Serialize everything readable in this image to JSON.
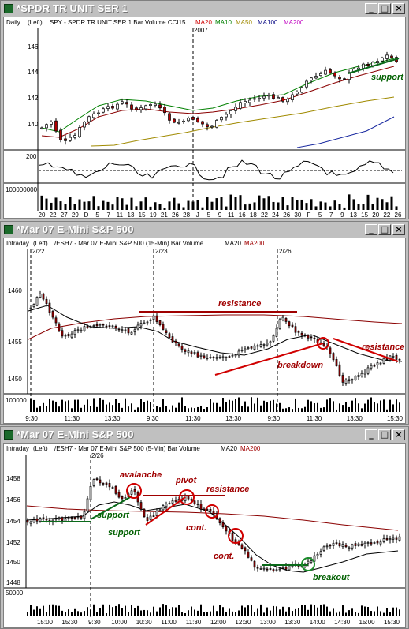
{
  "windows": [
    {
      "title": "*SPDR TR UNIT SER 1",
      "period": "Daily",
      "axis_side": "(Left)",
      "symbol_desc": "SPY - SPDR TR UNIT SER 1 Bar Volume CCI15",
      "indicators": [
        {
          "label": "MA20",
          "color": "#d00000"
        },
        {
          "label": "MA10",
          "color": "#008000"
        },
        {
          "label": "MA50",
          "color": "#a08a00"
        },
        {
          "label": "MA100",
          "color": "#000080"
        },
        {
          "label": "MA200",
          "color": "#c000c0"
        }
      ],
      "year_label": "2007",
      "price_ticks": [
        "146",
        "144",
        "142",
        "140"
      ],
      "cci_tick": "200",
      "volume_tick": "100000000",
      "x_labels": [
        "20",
        "22",
        "27",
        "29",
        "D",
        "5",
        "7",
        "11",
        "13",
        "15",
        "19",
        "21",
        "26",
        "28",
        "J",
        "5",
        "9",
        "11",
        "16",
        "18",
        "22",
        "24",
        "26",
        "30",
        "F",
        "5",
        "7",
        "9",
        "13",
        "15",
        "20",
        "22",
        "26"
      ],
      "annotations": [
        {
          "text": "support",
          "color": "#006000"
        }
      ]
    },
    {
      "title": "*Mar 07  E-Mini S&P 500",
      "period": "Intraday",
      "axis_side": "(Left)",
      "symbol_desc": "/ESH7 - Mar 07  E-Mini S&P 500 (15-Min)  Bar  Volume",
      "indicators": [
        {
          "label": "MA20",
          "color": "#000000"
        },
        {
          "label": "MA200",
          "color": "#a00000"
        }
      ],
      "date_labels": [
        "2/22",
        "2/23",
        "2/26"
      ],
      "price_ticks": [
        "1460",
        "1455",
        "1450"
      ],
      "volume_tick": "100000",
      "x_labels": [
        "9:30",
        "11:30",
        "13:30",
        "9:30",
        "11:30",
        "13:30",
        "9:30",
        "11:30",
        "13:30",
        "15:30"
      ],
      "annotations": [
        {
          "text": "resistance",
          "color": "#a00000"
        },
        {
          "text": "breakdown",
          "color": "#a00000"
        },
        {
          "text": "resistance",
          "color": "#a00000"
        }
      ]
    },
    {
      "title": "*Mar 07  E-Mini S&P 500",
      "period": "Intraday",
      "axis_side": "(Left)",
      "symbol_desc": "/ESH7 - Mar 07  E-Mini S&P 500 (5-Min)  Bar  Volume",
      "indicators": [
        {
          "label": "MA20",
          "color": "#000000"
        },
        {
          "label": "MA200",
          "color": "#a00000"
        }
      ],
      "date_labels": [
        "2/26"
      ],
      "price_ticks": [
        "1458",
        "1456",
        "1454",
        "1452",
        "1450",
        "1448"
      ],
      "volume_tick": "50000",
      "x_labels": [
        "15:00",
        "15:30",
        "9:30",
        "10:00",
        "10:30",
        "11:00",
        "11:30",
        "12:00",
        "12:30",
        "13:00",
        "13:30",
        "14:00",
        "14:30",
        "15:00",
        "15:30"
      ],
      "annotations": [
        {
          "text": "avalanche",
          "color": "#a00000"
        },
        {
          "text": "pivot",
          "color": "#a00000"
        },
        {
          "text": "resistance",
          "color": "#a00000"
        },
        {
          "text": "support",
          "color": "#006000"
        },
        {
          "text": "support",
          "color": "#006000"
        },
        {
          "text": "cont.",
          "color": "#a00000"
        },
        {
          "text": "cont.",
          "color": "#a00000"
        },
        {
          "text": "breakout",
          "color": "#006000"
        }
      ]
    }
  ],
  "buttons": {
    "minimize": "_",
    "maximize": "□",
    "close": "×"
  }
}
